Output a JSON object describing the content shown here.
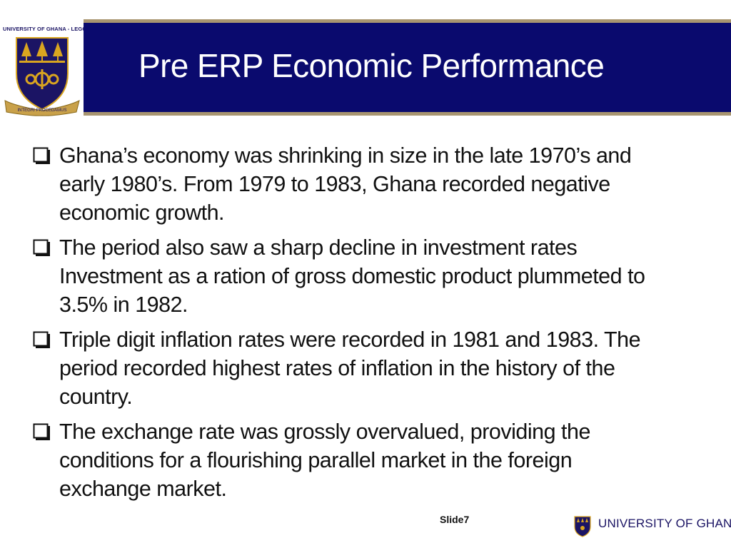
{
  "header": {
    "crest_caption": "UNIVERSITY OF GHANA - LEGON",
    "crest_motto": "INTEGRI PROCEDAMUS",
    "title": "Pre ERP Economic Performance"
  },
  "bullets": [
    {
      "text": "Ghana’s economy was shrinking in size in the late 1970’s and early 1980’s. From 1979 to 1983, Ghana recorded negative economic growth."
    },
    {
      "text": "The period also saw a sharp decline in investment rates Investment as a ration of gross domestic product plummeted to 3.5% in 1982."
    },
    {
      "text": "Triple digit inflation rates were recorded in 1981 and 1983. The period recorded highest rates of inflation in the history of the country."
    },
    {
      "text": "The exchange rate was grossly overvalued, providing the conditions for a flourishing parallel market in the foreign exchange market."
    }
  ],
  "footer": {
    "slide_label": "Slide7",
    "university_name": "UNIVERSITY OF GHANA"
  },
  "colors": {
    "title_bar": "#0a0a6e",
    "title_bar_border": "#a89570",
    "crest_gold": "#d9a520",
    "crest_navy": "#1b1464"
  }
}
